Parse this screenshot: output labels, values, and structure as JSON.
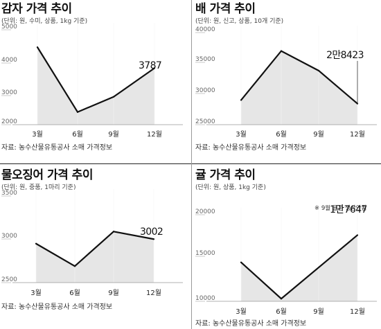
{
  "colors": {
    "line": "#111111",
    "area": "#e6e6e6",
    "text": "#111111",
    "tick": "#666666"
  },
  "chart_data": [
    {
      "type": "area",
      "title": "감자 가격 추이",
      "unit": "(단위: 원, 수미, 상품, 1kg 기준)",
      "categories": [
        "3월",
        "6월",
        "9월",
        "12월"
      ],
      "values": [
        4450,
        2400,
        2880,
        3787
      ],
      "ylim": [
        2000,
        5000
      ],
      "yticks": [
        "5000",
        "4000",
        "3000",
        "2000"
      ],
      "label": "3787",
      "note": "",
      "source": "자료: 농수산물유통공사 소매 가격정보"
    },
    {
      "type": "area",
      "title": "배 가격 추이",
      "unit": "(단위: 원, 신고, 상품, 10개 기준)",
      "categories": [
        "3월",
        "6월",
        "9월",
        "12월"
      ],
      "values": [
        29000,
        37000,
        33800,
        28423
      ],
      "ylim": [
        25000,
        40000
      ],
      "yticks": [
        "40000",
        "35000",
        "30000",
        "25000"
      ],
      "label": "2만8423",
      "note": "",
      "source": "자료: 농수산물유통공사 소매 가격정보"
    },
    {
      "type": "area",
      "title": "물오징어 가격 추이",
      "unit": "(단위: 원, 중품, 1마리 기준)",
      "categories": [
        "3월",
        "6월",
        "9월",
        "12월"
      ],
      "values": [
        2950,
        2690,
        3090,
        3002
      ],
      "ylim": [
        2500,
        3500
      ],
      "yticks": [
        "3500",
        "3000",
        "2500"
      ],
      "label": "3002",
      "note": "",
      "source": "자료: 농수산물유통공사 소매 가격정보"
    },
    {
      "type": "area",
      "title": "귤 가격 추이",
      "unit": "(단위: 원, 상품, 1kg 기준)",
      "categories": [
        "3월",
        "6월",
        "9월",
        "12월"
      ],
      "values": [
        14500,
        10300,
        null,
        17647
      ],
      "ylim": [
        10000,
        20000
      ],
      "yticks": [
        "20000",
        "15000",
        "10000"
      ],
      "label": "1만7647",
      "note": "※ 9월 귤은 생산안됨",
      "source": "자료: 농수산물유통공사 소매 가격정보"
    }
  ]
}
